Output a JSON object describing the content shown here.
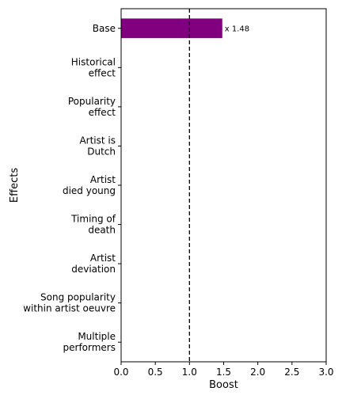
{
  "chart_data": {
    "type": "bar",
    "orientation": "horizontal",
    "categories": [
      [
        "Base"
      ],
      [
        "Historical",
        "effect"
      ],
      [
        "Popularity",
        "effect"
      ],
      [
        "Artist is",
        "Dutch"
      ],
      [
        "Artist",
        "died young"
      ],
      [
        "Timing of",
        "death"
      ],
      [
        "Artist",
        "deviation"
      ],
      [
        "Song popularity",
        "within artist oeuvre"
      ],
      [
        "Multiple",
        "performers"
      ]
    ],
    "values": [
      1.48,
      null,
      null,
      null,
      null,
      null,
      null,
      null,
      null
    ],
    "data_labels": [
      "x 1.48",
      "",
      "",
      "",
      "",
      "",
      "",
      "",
      ""
    ],
    "bar_color": "#800080",
    "reference_line": {
      "x": 1.0,
      "style": "dashed",
      "color": "#000000"
    },
    "xlabel": "Boost",
    "ylabel": "Effects",
    "xlim": [
      0.0,
      3.0
    ],
    "xticks": [
      "0.0",
      "0.5",
      "1.0",
      "1.5",
      "2.0",
      "2.5",
      "3.0"
    ],
    "grid": false
  }
}
